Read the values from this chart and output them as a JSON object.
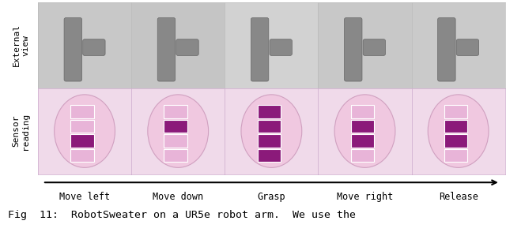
{
  "background_color": "#ffffff",
  "row_labels": [
    "External\nview",
    "Sensor\nreading"
  ],
  "col_labels": [
    "Move left",
    "Move down",
    "Grasp",
    "Move right",
    "Release"
  ],
  "label_fontsize": 8.5,
  "row_label_fontsize": 8.0,
  "fig_caption": "Fig  11:  RobotSweater on a UR5e robot arm.  We use the",
  "caption_fontsize": 9.5,
  "top_row_bg": "#d0cece",
  "bottom_row_bg": "#f2ddef",
  "sensor_colors": [
    [
      "#e8b4d8",
      "#9b2d8a"
    ],
    [
      "#e8b4d8",
      "#9b2d8a"
    ],
    [
      "#c060a8",
      "#9b2d8a"
    ],
    [
      "#e8b4d8",
      "#9b2d8a"
    ],
    [
      "#e8b4d8",
      "#9b2d8a"
    ]
  ]
}
